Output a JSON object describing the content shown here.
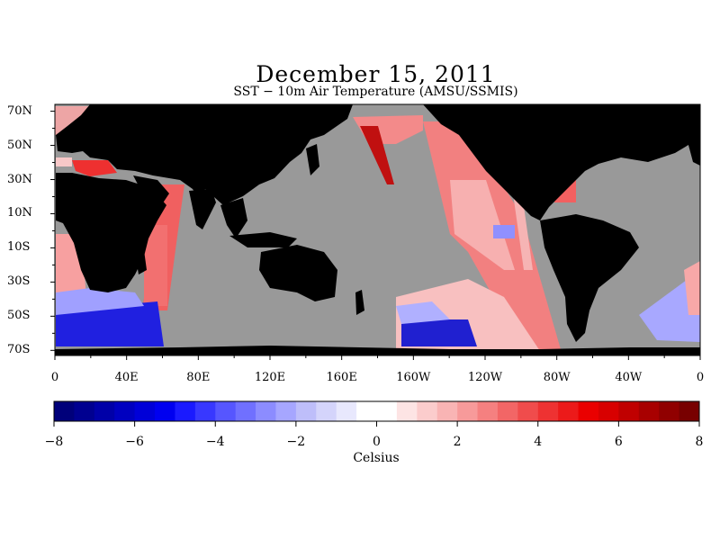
{
  "title": "December 15, 2011",
  "subtitle": "SST − 10m Air Temperature (AMSU/SSMIS)",
  "map": {
    "lat_labels": [
      "70N",
      "50N",
      "30N",
      "10N",
      "10S",
      "30S",
      "50S",
      "70S"
    ],
    "lat_values": [
      70,
      50,
      30,
      10,
      -10,
      -30,
      -50,
      -70
    ],
    "lon_labels": [
      "0",
      "40E",
      "80E",
      "120E",
      "160E",
      "160W",
      "120W",
      "80W",
      "40W",
      "0"
    ],
    "lon_values": [
      0,
      40,
      80,
      120,
      160,
      200,
      240,
      280,
      320,
      360
    ],
    "lat_range": [
      -73,
      74
    ],
    "lon_range": [
      0,
      360
    ],
    "colors": {
      "land": "#000000",
      "no_data": "#999999"
    }
  },
  "colorbar": {
    "range": [
      -8,
      8
    ],
    "step": 0.5,
    "tick_labels": [
      "−8",
      "−6",
      "−4",
      "−2",
      "0",
      "2",
      "4",
      "6",
      "8"
    ],
    "tick_values": [
      -8,
      -6,
      -4,
      -2,
      0,
      2,
      4,
      6,
      8
    ],
    "units": "Celsius",
    "colors": [
      "#00007a",
      "#000090",
      "#0000a8",
      "#0000c0",
      "#0000d8",
      "#0000f0",
      "#1a1aff",
      "#3838ff",
      "#5656ff",
      "#7070ff",
      "#8c8cff",
      "#a6a6ff",
      "#bebefa",
      "#d4d4fb",
      "#e8e8fd",
      "#ffffff",
      "#ffffff",
      "#fde4e4",
      "#fbcccc",
      "#f9b4b4",
      "#f79a9a",
      "#f58080",
      "#f26666",
      "#f04c4c",
      "#ee3232",
      "#ec1a1a",
      "#ea0000",
      "#d80000",
      "#c00000",
      "#a80000",
      "#900000",
      "#780000"
    ]
  }
}
